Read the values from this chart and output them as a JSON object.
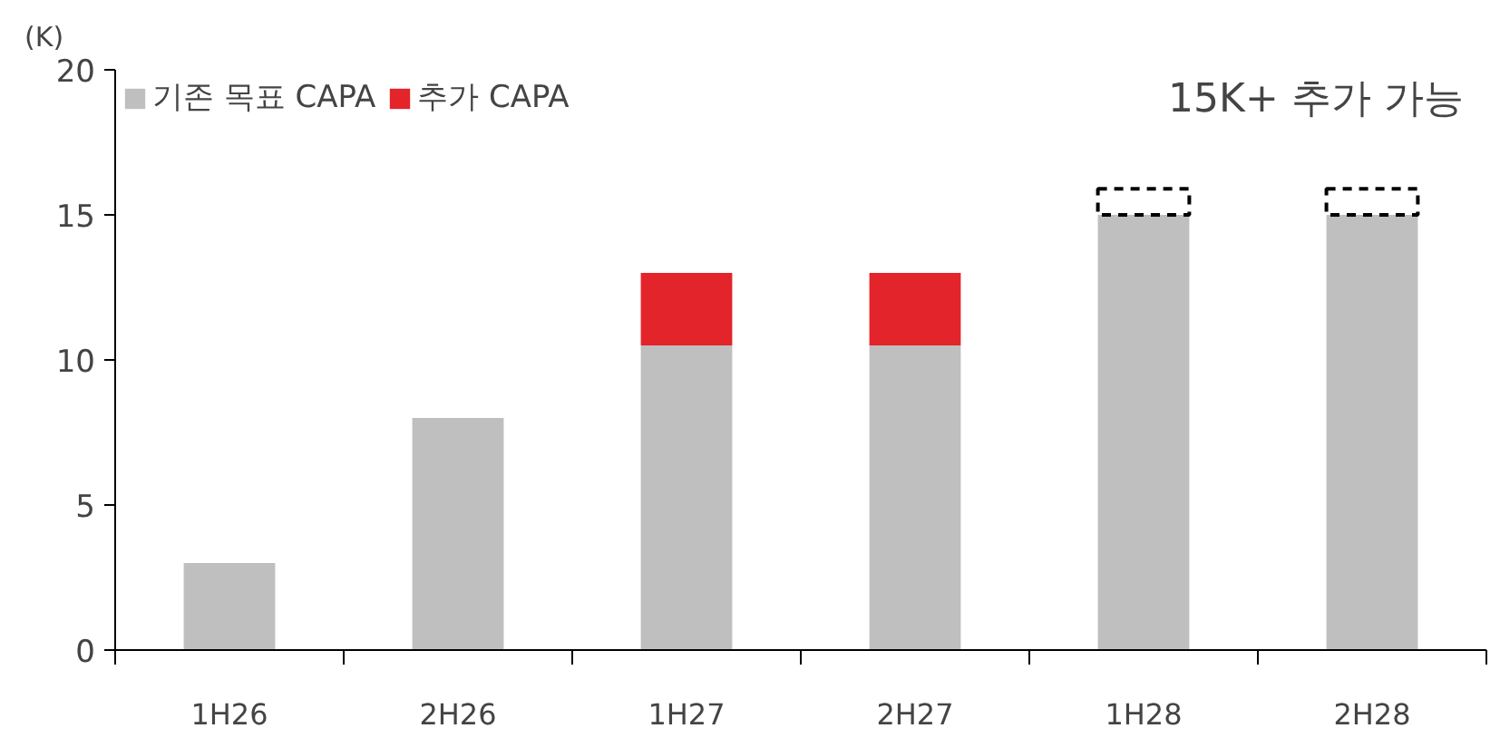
{
  "chart_data": {
    "type": "bar",
    "stacked": true,
    "ylabel": "(K)",
    "categories": [
      "1H26",
      "2H26",
      "1H27",
      "2H27",
      "1H28",
      "2H28"
    ],
    "series": [
      {
        "name": "기존 목표 CAPA",
        "color": "#bfbfbf",
        "values": [
          3,
          8,
          10.5,
          10.5,
          15,
          15
        ]
      },
      {
        "name": "추가 CAPA",
        "color": "#e3242b",
        "values": [
          null,
          null,
          2.5,
          2.5,
          null,
          null
        ]
      },
      {
        "color": "#000000",
        "line_style": "dashed",
        "values": [
          null,
          null,
          null,
          null,
          0.9,
          0.9
        ]
      }
    ],
    "ylim": [
      0,
      20
    ],
    "yticks": [
      0,
      5,
      10,
      15,
      20
    ],
    "grid": false,
    "legend": "top left",
    "annotations": [
      "15K+ 추가 가능"
    ]
  }
}
